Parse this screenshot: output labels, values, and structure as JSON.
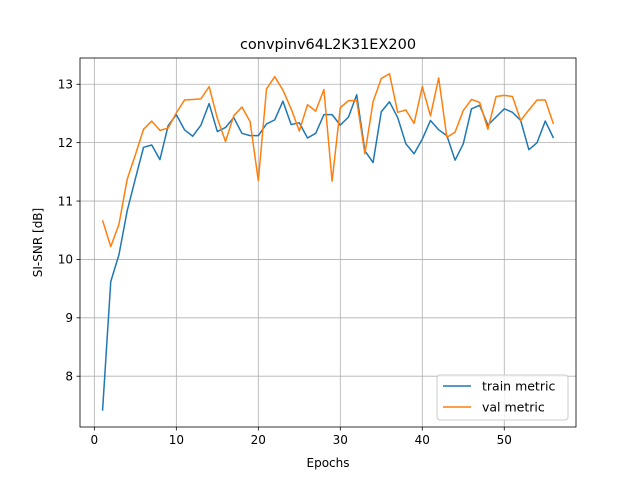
{
  "chart_data": {
    "type": "line",
    "title": "convpinv64L2K31EX200",
    "xlabel": "Epochs",
    "ylabel": "SI-SNR [dB]",
    "xlim": [
      -1.75,
      58.75
    ],
    "ylim": [
      7.13,
      13.45
    ],
    "xticks": [
      0,
      10,
      20,
      30,
      40,
      50
    ],
    "yticks": [
      8,
      9,
      10,
      11,
      12,
      13
    ],
    "grid": true,
    "legend_location": "lower right",
    "x": [
      1,
      2,
      3,
      4,
      5,
      6,
      7,
      8,
      9,
      10,
      11,
      12,
      13,
      14,
      15,
      16,
      17,
      18,
      19,
      20,
      21,
      22,
      23,
      24,
      25,
      26,
      27,
      28,
      29,
      30,
      31,
      32,
      33,
      34,
      35,
      36,
      37,
      38,
      39,
      40,
      41,
      42,
      43,
      44,
      45,
      46,
      47,
      48,
      49,
      50,
      51,
      52,
      53,
      54,
      55,
      56
    ],
    "series": [
      {
        "name": "train metric",
        "color": "#1f77b4",
        "values": [
          7.41,
          9.62,
          10.08,
          10.83,
          11.38,
          11.92,
          11.96,
          11.71,
          12.29,
          12.48,
          12.22,
          12.11,
          12.3,
          12.67,
          12.19,
          12.26,
          12.43,
          12.16,
          12.12,
          12.12,
          12.32,
          12.39,
          12.71,
          12.31,
          12.34,
          12.08,
          12.16,
          12.48,
          12.48,
          12.3,
          12.44,
          12.82,
          11.86,
          11.66,
          12.53,
          12.7,
          12.43,
          11.98,
          11.81,
          12.06,
          12.38,
          12.22,
          12.12,
          11.7,
          11.98,
          12.58,
          12.64,
          12.3,
          12.44,
          12.58,
          12.52,
          12.38,
          11.88,
          12.0,
          12.37,
          12.08
        ]
      },
      {
        "name": "val metric",
        "color": "#ff7f0e",
        "values": [
          10.67,
          10.22,
          10.6,
          11.37,
          11.79,
          12.23,
          12.37,
          12.21,
          12.25,
          12.51,
          12.73,
          12.74,
          12.75,
          12.96,
          12.42,
          12.02,
          12.46,
          12.61,
          12.36,
          11.35,
          12.92,
          13.13,
          12.9,
          12.58,
          12.2,
          12.65,
          12.54,
          12.91,
          11.34,
          12.6,
          12.72,
          12.72,
          11.81,
          12.7,
          13.1,
          13.18,
          12.52,
          12.56,
          12.33,
          12.96,
          12.46,
          13.11,
          12.09,
          12.18,
          12.55,
          12.74,
          12.69,
          12.23,
          12.79,
          12.81,
          12.79,
          12.38,
          12.56,
          12.73,
          12.73,
          12.32
        ]
      }
    ]
  }
}
